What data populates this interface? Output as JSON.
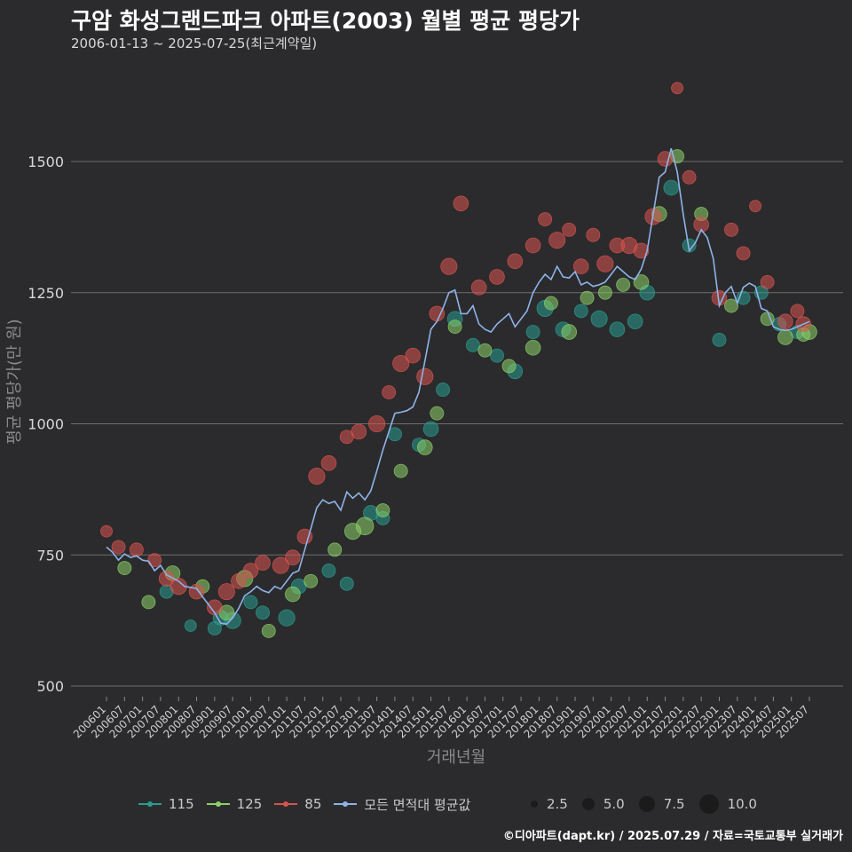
{
  "header": {
    "title": "구암 화성그랜드파크 아파트(2003) 월별 평균 평당가",
    "subtitle": "2006-01-13 ~ 2025-07-25(최근계약일)"
  },
  "caption": "©디아파트(dapt.kr) / 2025.07.29 / 자료=국토교통부 실거래가",
  "colors": {
    "s115": "#2a9d8f",
    "s125": "#8cd169",
    "s85": "#d9534f",
    "avg": "#8fb3e8",
    "grid": "#6e6e6e",
    "background": "#2b2b2d"
  },
  "legend": {
    "series": [
      {
        "label": "115",
        "color": "#2a9d8f"
      },
      {
        "label": "125",
        "color": "#8cd169"
      },
      {
        "label": "85",
        "color": "#d9534f"
      },
      {
        "label": "모든 면적대 평균값",
        "color": "#8fb3e8"
      }
    ],
    "sizes": [
      {
        "label": "2.5",
        "value": 2.5
      },
      {
        "label": "5.0",
        "value": 5.0
      },
      {
        "label": "7.5",
        "value": 7.5
      },
      {
        "label": "10.0",
        "value": 10.0
      }
    ]
  },
  "chart_data": {
    "type": "scatter",
    "xlabel": "거래년월",
    "ylabel": "평균 평당가(만 원)",
    "yticks": [
      500,
      750,
      1000,
      1250,
      1500
    ],
    "ylim": [
      480,
      1660
    ],
    "xlim": [
      "2006-01",
      "2025-07"
    ],
    "xticks": [
      "200601",
      "200607",
      "200701",
      "200707",
      "200801",
      "200807",
      "200901",
      "200907",
      "201001",
      "201007",
      "201101",
      "201107",
      "201201",
      "201207",
      "201301",
      "201307",
      "201401",
      "201407",
      "201501",
      "201507",
      "201601",
      "201607",
      "201701",
      "201707",
      "201801",
      "201807",
      "201901",
      "201907",
      "202001",
      "202007",
      "202101",
      "202107",
      "202201",
      "202207",
      "202301",
      "202307",
      "202401",
      "202407",
      "202501",
      "202507"
    ],
    "grid": "horizontal",
    "legend_position": "bottom",
    "average_series": {
      "name": "모든 면적대 평균값",
      "points": [
        [
          "2006-01",
          765
        ],
        [
          "2006-03",
          755
        ],
        [
          "2006-05",
          740
        ],
        [
          "2006-07",
          752
        ],
        [
          "2006-09",
          745
        ],
        [
          "2006-11",
          748
        ],
        [
          "2007-01",
          740
        ],
        [
          "2007-03",
          738
        ],
        [
          "2007-05",
          720
        ],
        [
          "2007-07",
          730
        ],
        [
          "2007-09",
          712
        ],
        [
          "2007-11",
          706
        ],
        [
          "2008-01",
          700
        ],
        [
          "2008-03",
          690
        ],
        [
          "2008-05",
          688
        ],
        [
          "2008-07",
          686
        ],
        [
          "2008-09",
          670
        ],
        [
          "2008-11",
          655
        ],
        [
          "2009-01",
          640
        ],
        [
          "2009-03",
          620
        ],
        [
          "2009-05",
          618
        ],
        [
          "2009-07",
          630
        ],
        [
          "2009-09",
          648
        ],
        [
          "2009-11",
          672
        ],
        [
          "2010-01",
          680
        ],
        [
          "2010-03",
          690
        ],
        [
          "2010-05",
          682
        ],
        [
          "2010-07",
          678
        ],
        [
          "2010-09",
          690
        ],
        [
          "2010-11",
          685
        ],
        [
          "2011-01",
          700
        ],
        [
          "2011-03",
          715
        ],
        [
          "2011-05",
          720
        ],
        [
          "2011-07",
          760
        ],
        [
          "2011-09",
          800
        ],
        [
          "2011-11",
          840
        ],
        [
          "2012-01",
          855
        ],
        [
          "2012-03",
          848
        ],
        [
          "2012-05",
          852
        ],
        [
          "2012-07",
          835
        ],
        [
          "2012-09",
          870
        ],
        [
          "2012-11",
          858
        ],
        [
          "2013-01",
          868
        ],
        [
          "2013-03",
          855
        ],
        [
          "2013-05",
          872
        ],
        [
          "2013-07",
          910
        ],
        [
          "2013-09",
          950
        ],
        [
          "2013-11",
          985
        ],
        [
          "2014-01",
          1020
        ],
        [
          "2014-03",
          1022
        ],
        [
          "2014-05",
          1025
        ],
        [
          "2014-07",
          1032
        ],
        [
          "2014-09",
          1060
        ],
        [
          "2014-11",
          1120
        ],
        [
          "2015-01",
          1180
        ],
        [
          "2015-03",
          1195
        ],
        [
          "2015-05",
          1220
        ],
        [
          "2015-07",
          1250
        ],
        [
          "2015-09",
          1255
        ],
        [
          "2015-11",
          1210
        ],
        [
          "2016-01",
          1210
        ],
        [
          "2016-03",
          1225
        ],
        [
          "2016-05",
          1190
        ],
        [
          "2016-07",
          1180
        ],
        [
          "2016-09",
          1175
        ],
        [
          "2016-11",
          1190
        ],
        [
          "2017-01",
          1200
        ],
        [
          "2017-03",
          1210
        ],
        [
          "2017-05",
          1185
        ],
        [
          "2017-07",
          1200
        ],
        [
          "2017-09",
          1215
        ],
        [
          "2017-11",
          1250
        ],
        [
          "2018-01",
          1270
        ],
        [
          "2018-03",
          1285
        ],
        [
          "2018-05",
          1275
        ],
        [
          "2018-07",
          1300
        ],
        [
          "2018-09",
          1280
        ],
        [
          "2018-11",
          1278
        ],
        [
          "2019-01",
          1290
        ],
        [
          "2019-03",
          1265
        ],
        [
          "2019-05",
          1270
        ],
        [
          "2019-07",
          1262
        ],
        [
          "2019-09",
          1265
        ],
        [
          "2019-11",
          1270
        ],
        [
          "2020-01",
          1285
        ],
        [
          "2020-03",
          1300
        ],
        [
          "2020-05",
          1290
        ],
        [
          "2020-07",
          1280
        ],
        [
          "2020-09",
          1275
        ],
        [
          "2020-11",
          1295
        ],
        [
          "2021-01",
          1330
        ],
        [
          "2021-03",
          1400
        ],
        [
          "2021-05",
          1470
        ],
        [
          "2021-07",
          1480
        ],
        [
          "2021-09",
          1525
        ],
        [
          "2021-11",
          1480
        ],
        [
          "2022-01",
          1400
        ],
        [
          "2022-03",
          1330
        ],
        [
          "2022-05",
          1345
        ],
        [
          "2022-07",
          1370
        ],
        [
          "2022-09",
          1355
        ],
        [
          "2022-11",
          1315
        ],
        [
          "2023-01",
          1225
        ],
        [
          "2023-03",
          1250
        ],
        [
          "2023-05",
          1262
        ],
        [
          "2023-07",
          1230
        ],
        [
          "2023-09",
          1260
        ],
        [
          "2023-11",
          1268
        ],
        [
          "2024-01",
          1262
        ],
        [
          "2024-03",
          1220
        ],
        [
          "2024-05",
          1215
        ],
        [
          "2024-07",
          1185
        ],
        [
          "2024-09",
          1180
        ],
        [
          "2024-11",
          1178
        ],
        [
          "2025-01",
          1180
        ],
        [
          "2025-03",
          1185
        ],
        [
          "2025-05",
          1190
        ],
        [
          "2025-07",
          1195
        ]
      ]
    },
    "scatter_series": [
      {
        "name": "115",
        "points": [
          [
            "2007-09",
            680,
            3
          ],
          [
            "2008-05",
            615,
            2
          ],
          [
            "2009-01",
            610,
            3
          ],
          [
            "2009-03",
            630,
            4
          ],
          [
            "2009-07",
            625,
            5
          ],
          [
            "2010-01",
            660,
            3
          ],
          [
            "2010-05",
            640,
            3
          ],
          [
            "2011-01",
            630,
            5
          ],
          [
            "2011-05",
            690,
            4
          ],
          [
            "2012-03",
            720,
            3
          ],
          [
            "2012-09",
            695,
            3
          ],
          [
            "2013-05",
            830,
            4
          ],
          [
            "2013-09",
            820,
            3
          ],
          [
            "2014-01",
            980,
            3
          ],
          [
            "2014-09",
            960,
            3
          ],
          [
            "2015-01",
            990,
            4
          ],
          [
            "2015-05",
            1065,
            3
          ],
          [
            "2015-09",
            1200,
            4
          ],
          [
            "2016-03",
            1150,
            3
          ],
          [
            "2016-11",
            1130,
            3
          ],
          [
            "2017-05",
            1100,
            4
          ],
          [
            "2017-11",
            1175,
            3
          ],
          [
            "2018-03",
            1220,
            5
          ],
          [
            "2018-09",
            1180,
            4
          ],
          [
            "2019-03",
            1215,
            3
          ],
          [
            "2019-09",
            1200,
            5
          ],
          [
            "2020-03",
            1180,
            4
          ],
          [
            "2020-09",
            1195,
            4
          ],
          [
            "2021-01",
            1250,
            4
          ],
          [
            "2021-09",
            1450,
            4
          ],
          [
            "2022-03",
            1340,
            3
          ],
          [
            "2023-01",
            1160,
            3
          ],
          [
            "2023-09",
            1240,
            3
          ],
          [
            "2024-03",
            1250,
            3
          ],
          [
            "2024-09",
            1190,
            3
          ],
          [
            "2025-03",
            1175,
            3
          ]
        ]
      },
      {
        "name": "125",
        "points": [
          [
            "2006-07",
            725,
            3
          ],
          [
            "2007-03",
            660,
            3
          ],
          [
            "2007-11",
            715,
            4
          ],
          [
            "2008-09",
            690,
            3
          ],
          [
            "2009-05",
            640,
            4
          ],
          [
            "2009-11",
            705,
            5
          ],
          [
            "2010-07",
            605,
            3
          ],
          [
            "2011-03",
            675,
            4
          ],
          [
            "2011-09",
            700,
            3
          ],
          [
            "2012-05",
            760,
            3
          ],
          [
            "2012-11",
            795,
            5
          ],
          [
            "2013-03",
            805,
            6
          ],
          [
            "2013-09",
            835,
            3
          ],
          [
            "2014-03",
            910,
            3
          ],
          [
            "2014-11",
            955,
            4
          ],
          [
            "2015-03",
            1020,
            3
          ],
          [
            "2015-09",
            1185,
            3
          ],
          [
            "2016-07",
            1140,
            3
          ],
          [
            "2017-03",
            1110,
            3
          ],
          [
            "2017-11",
            1145,
            4
          ],
          [
            "2018-05",
            1230,
            3
          ],
          [
            "2018-11",
            1175,
            4
          ],
          [
            "2019-05",
            1240,
            3
          ],
          [
            "2019-11",
            1250,
            3
          ],
          [
            "2020-05",
            1265,
            3
          ],
          [
            "2020-11",
            1270,
            4
          ],
          [
            "2021-05",
            1400,
            4
          ],
          [
            "2021-11",
            1510,
            3
          ],
          [
            "2022-07",
            1400,
            3
          ],
          [
            "2023-05",
            1225,
            3
          ],
          [
            "2024-05",
            1200,
            3
          ],
          [
            "2024-11",
            1165,
            4
          ],
          [
            "2025-05",
            1170,
            3
          ],
          [
            "2025-07",
            1175,
            4
          ]
        ]
      },
      {
        "name": "85",
        "points": [
          [
            "2006-01",
            795,
            2
          ],
          [
            "2006-05",
            765,
            3
          ],
          [
            "2006-11",
            760,
            3
          ],
          [
            "2007-05",
            740,
            3
          ],
          [
            "2007-09",
            705,
            4
          ],
          [
            "2008-01",
            690,
            5
          ],
          [
            "2008-07",
            680,
            4
          ],
          [
            "2009-01",
            650,
            4
          ],
          [
            "2009-05",
            680,
            5
          ],
          [
            "2009-09",
            700,
            4
          ],
          [
            "2010-01",
            720,
            4
          ],
          [
            "2010-05",
            735,
            4
          ],
          [
            "2010-11",
            730,
            5
          ],
          [
            "2011-03",
            745,
            4
          ],
          [
            "2011-07",
            785,
            4
          ],
          [
            "2011-11",
            900,
            5
          ],
          [
            "2012-03",
            925,
            4
          ],
          [
            "2012-09",
            975,
            3
          ],
          [
            "2013-01",
            985,
            4
          ],
          [
            "2013-07",
            1000,
            5
          ],
          [
            "2013-11",
            1060,
            3
          ],
          [
            "2014-03",
            1115,
            5
          ],
          [
            "2014-07",
            1130,
            4
          ],
          [
            "2014-11",
            1090,
            5
          ],
          [
            "2015-03",
            1210,
            4
          ],
          [
            "2015-07",
            1300,
            5
          ],
          [
            "2015-11",
            1420,
            4
          ],
          [
            "2016-05",
            1260,
            4
          ],
          [
            "2016-11",
            1280,
            4
          ],
          [
            "2017-05",
            1310,
            4
          ],
          [
            "2017-11",
            1340,
            4
          ],
          [
            "2018-03",
            1390,
            3
          ],
          [
            "2018-07",
            1350,
            5
          ],
          [
            "2018-11",
            1370,
            3
          ],
          [
            "2019-03",
            1300,
            4
          ],
          [
            "2019-07",
            1360,
            3
          ],
          [
            "2019-11",
            1305,
            5
          ],
          [
            "2020-03",
            1340,
            4
          ],
          [
            "2020-07",
            1340,
            5
          ],
          [
            "2020-11",
            1330,
            4
          ],
          [
            "2021-03",
            1395,
            5
          ],
          [
            "2021-07",
            1505,
            4
          ],
          [
            "2021-11",
            1640,
            2
          ],
          [
            "2022-03",
            1470,
            3
          ],
          [
            "2022-07",
            1380,
            4
          ],
          [
            "2023-01",
            1240,
            4
          ],
          [
            "2023-05",
            1370,
            3
          ],
          [
            "2023-09",
            1325,
            3
          ],
          [
            "2024-01",
            1415,
            2
          ],
          [
            "2024-05",
            1270,
            3
          ],
          [
            "2024-11",
            1195,
            4
          ],
          [
            "2025-03",
            1215,
            3
          ],
          [
            "2025-05",
            1190,
            4
          ]
        ]
      }
    ]
  }
}
